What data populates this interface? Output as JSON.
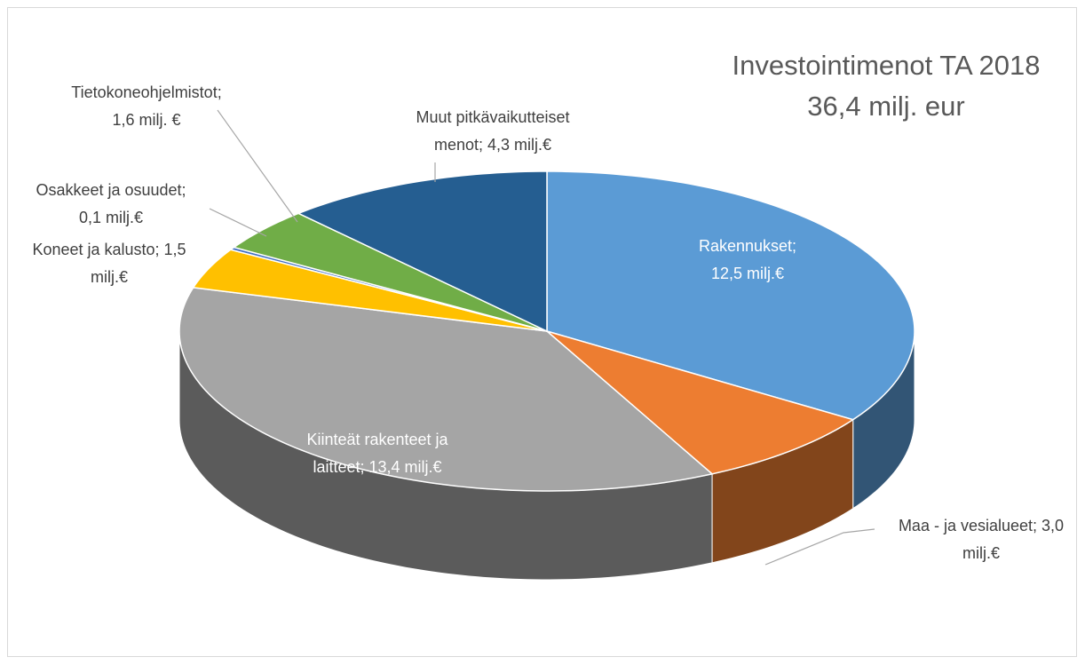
{
  "chart_data": {
    "type": "pie3d",
    "title": [
      "Investointimenot TA 2018",
      "36,4 milj. eur"
    ],
    "values": [
      12.5,
      3.0,
      13.4,
      1.5,
      0.1,
      1.6,
      4.3
    ],
    "value_labels": [
      [
        "Rakennukset;",
        "12,5 milj.€"
      ],
      [
        "Maa - ja vesialueet; 3,0",
        "milj.€"
      ],
      [
        "Kiinteät rakenteet ja",
        "laitteet; 13,4 milj.€"
      ],
      [
        "Koneet ja kalusto; 1,5",
        "milj.€"
      ],
      [
        "Osakkeet ja osuudet;",
        "0,1 milj.€"
      ],
      [
        "Tietokoneohjelmistot;",
        "1,6 milj. €"
      ],
      [
        "Muut pitkävaikutteiset",
        "menot; 4,3 milj.€"
      ]
    ],
    "colors": [
      "#5b9bd5",
      "#ed7d31",
      "#a5a5a5",
      "#ffc000",
      "#4472c4",
      "#70ad47",
      "#255e91"
    ]
  }
}
